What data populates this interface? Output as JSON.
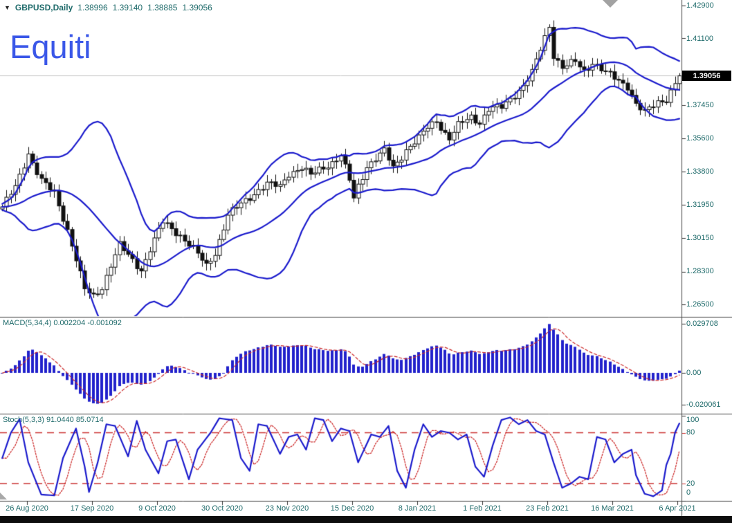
{
  "header": {
    "symbol": "GBPUSD,Daily",
    "open": "1.38996",
    "high": "1.39140",
    "low": "1.38885",
    "close": "1.39056"
  },
  "watermark": "Equiti",
  "icons": {
    "symbol_dropdown": "▼"
  },
  "colors": {
    "axis_text": "#1e6a6a",
    "watermark_blue": "#3a57e8",
    "indicator_blue": "#1a1acc",
    "macd_bar_blue": "#2222cc",
    "signal_red": "#cc2a2a",
    "level_red": "#cc3333",
    "bull_candle": "#ffffff",
    "bear_candle": "#111111",
    "candle_outline": "#111111",
    "bid_line_gray": "#c6c6c6",
    "separator": "#4a4a4a",
    "price_marker_bg": "#000000",
    "price_marker_text": "#ffffff"
  },
  "chart_data": {
    "type": "candlestick",
    "symbol": "GBPUSD",
    "timeframe": "Daily",
    "title": "GBPUSD Daily with Bollinger Bands, MACD and Stochastic",
    "x_labels": [
      "26 Aug 2020",
      "17 Sep 2020",
      "9 Oct 2020",
      "30 Oct 2020",
      "23 Nov 2020",
      "15 Dec 2020",
      "8 Jan 2021",
      "1 Feb 2021",
      "23 Feb 2021",
      "16 Mar 2021",
      "6 Apr 2021"
    ],
    "main": {
      "price_ticks": [
        "1.42900",
        "1.41100",
        "1.37450",
        "1.35600",
        "1.33800",
        "1.31950",
        "1.30150",
        "1.28300",
        "1.26500"
      ],
      "price_tick_values": [
        1.429,
        1.411,
        1.3745,
        1.356,
        1.338,
        1.3195,
        1.3015,
        1.283,
        1.265
      ],
      "current_price": "1.39056",
      "current_price_value": 1.39056,
      "candle_count": 157,
      "close_anchors": [
        [
          0,
          1.3185
        ],
        [
          3,
          1.329
        ],
        [
          6,
          1.348
        ],
        [
          9,
          1.333
        ],
        [
          12,
          1.3255
        ],
        [
          15,
          1.306
        ],
        [
          17,
          1.29
        ],
        [
          19,
          1.273
        ],
        [
          21,
          1.269
        ],
        [
          23,
          1.2745
        ],
        [
          25,
          1.287
        ],
        [
          27,
          1.2975
        ],
        [
          29,
          1.2915
        ],
        [
          32,
          1.284
        ],
        [
          34,
          1.2955
        ],
        [
          37,
          1.31
        ],
        [
          41,
          1.303
        ],
        [
          44,
          1.2955
        ],
        [
          47,
          1.286
        ],
        [
          49,
          1.2935
        ],
        [
          52,
          1.314
        ],
        [
          54,
          1.318
        ],
        [
          57,
          1.324
        ],
        [
          59,
          1.328
        ],
        [
          61,
          1.331
        ],
        [
          64,
          1.3295
        ],
        [
          66,
          1.337
        ],
        [
          69,
          1.34
        ],
        [
          71,
          1.3355
        ],
        [
          73,
          1.339
        ],
        [
          76,
          1.343
        ],
        [
          78,
          1.3465
        ],
        [
          80,
          1.333
        ],
        [
          81,
          1.323
        ],
        [
          82,
          1.33
        ],
        [
          84,
          1.341
        ],
        [
          86,
          1.345
        ],
        [
          88,
          1.349
        ],
        [
          90,
          1.34
        ],
        [
          91,
          1.343
        ],
        [
          93,
          1.35
        ],
        [
          96,
          1.356
        ],
        [
          98,
          1.362
        ],
        [
          100,
          1.366
        ],
        [
          102,
          1.359
        ],
        [
          103,
          1.356
        ],
        [
          105,
          1.363
        ],
        [
          108,
          1.368
        ],
        [
          110,
          1.365
        ],
        [
          112,
          1.372
        ],
        [
          115,
          1.373
        ],
        [
          117,
          1.378
        ],
        [
          120,
          1.385
        ],
        [
          122,
          1.392
        ],
        [
          124,
          1.405
        ],
        [
          126,
          1.418
        ],
        [
          127,
          1.402
        ],
        [
          129,
          1.395
        ],
        [
          132,
          1.398
        ],
        [
          134,
          1.393
        ],
        [
          136,
          1.398
        ],
        [
          139,
          1.392
        ],
        [
          141,
          1.389
        ],
        [
          144,
          1.385
        ],
        [
          146,
          1.375
        ],
        [
          148,
          1.37
        ],
        [
          151,
          1.376
        ],
        [
          153,
          1.378
        ],
        [
          156,
          1.39056
        ]
      ],
      "bollinger": {
        "period": 20,
        "deviation": 2
      }
    },
    "macd": {
      "label": "MACD(5,34,4)",
      "value_main": "0.002204",
      "value_signal": "-0.001092",
      "ticks": [
        "0.029708",
        "0.00",
        "-0.020061"
      ],
      "tick_values": [
        0.029708,
        0.0,
        -0.020061
      ],
      "params": {
        "fast": 5,
        "slow": 34,
        "signal": 4
      }
    },
    "stoch": {
      "label": "Stoch(5,3,3)",
      "value_main": "91.0440",
      "value_signal": "85.0714",
      "ticks": [
        "100",
        "80",
        "20",
        "0"
      ],
      "tick_values": [
        100,
        80,
        20,
        0
      ],
      "levels": [
        80,
        20
      ],
      "main_anchors": [
        [
          0,
          50
        ],
        [
          2,
          80
        ],
        [
          4,
          96
        ],
        [
          6,
          45
        ],
        [
          9,
          7
        ],
        [
          12,
          6
        ],
        [
          14,
          50
        ],
        [
          17,
          85
        ],
        [
          19,
          40
        ],
        [
          20,
          10
        ],
        [
          22,
          45
        ],
        [
          24,
          90
        ],
        [
          26,
          88
        ],
        [
          29,
          52
        ],
        [
          31,
          94
        ],
        [
          33,
          60
        ],
        [
          36,
          32
        ],
        [
          38,
          70
        ],
        [
          40,
          72
        ],
        [
          43,
          25
        ],
        [
          45,
          60
        ],
        [
          48,
          80
        ],
        [
          50,
          97
        ],
        [
          53,
          95
        ],
        [
          55,
          50
        ],
        [
          57,
          35
        ],
        [
          59,
          90
        ],
        [
          61,
          88
        ],
        [
          64,
          55
        ],
        [
          66,
          75
        ],
        [
          68,
          78
        ],
        [
          70,
          60
        ],
        [
          72,
          97
        ],
        [
          74,
          95
        ],
        [
          76,
          70
        ],
        [
          78,
          85
        ],
        [
          80,
          82
        ],
        [
          82,
          45
        ],
        [
          85,
          78
        ],
        [
          87,
          75
        ],
        [
          89,
          88
        ],
        [
          91,
          35
        ],
        [
          93,
          15
        ],
        [
          95,
          60
        ],
        [
          97,
          90
        ],
        [
          99,
          75
        ],
        [
          101,
          82
        ],
        [
          103,
          80
        ],
        [
          105,
          72
        ],
        [
          107,
          78
        ],
        [
          109,
          40
        ],
        [
          111,
          28
        ],
        [
          113,
          65
        ],
        [
          115,
          95
        ],
        [
          117,
          98
        ],
        [
          119,
          90
        ],
        [
          121,
          95
        ],
        [
          123,
          82
        ],
        [
          125,
          78
        ],
        [
          127,
          45
        ],
        [
          129,
          15
        ],
        [
          131,
          20
        ],
        [
          133,
          28
        ],
        [
          135,
          25
        ],
        [
          137,
          75
        ],
        [
          139,
          72
        ],
        [
          141,
          45
        ],
        [
          143,
          55
        ],
        [
          145,
          60
        ],
        [
          146,
          30
        ],
        [
          148,
          8
        ],
        [
          150,
          5
        ],
        [
          152,
          12
        ],
        [
          153,
          42
        ],
        [
          154,
          55
        ],
        [
          155,
          80
        ],
        [
          156,
          91
        ]
      ]
    }
  }
}
